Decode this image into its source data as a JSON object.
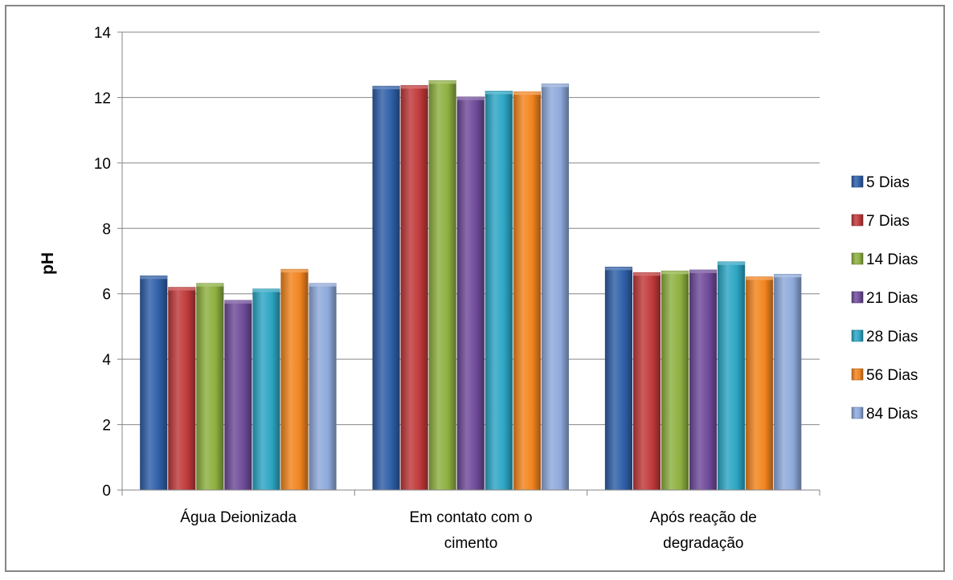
{
  "chart_data": {
    "type": "bar",
    "title": "",
    "xlabel": "",
    "ylabel": "pH",
    "ylim": [
      0,
      14
    ],
    "yticks": [
      0,
      2,
      4,
      6,
      8,
      10,
      12,
      14
    ],
    "grid": true,
    "legend_position": "right",
    "categories": [
      [
        "Água Deionizada"
      ],
      [
        "Em contato com o",
        "cimento"
      ],
      [
        "Após reação de",
        "degradação"
      ]
    ],
    "series": [
      {
        "name": "5 Dias",
        "color": "#2E5FA8",
        "values": [
          6.55,
          12.35,
          6.82
        ]
      },
      {
        "name": "7 Dias",
        "color": "#C0393A",
        "values": [
          6.2,
          12.37,
          6.65
        ]
      },
      {
        "name": "14 Dias",
        "color": "#8DB040",
        "values": [
          6.32,
          12.52,
          6.7
        ]
      },
      {
        "name": "21 Dias",
        "color": "#6F4B9A",
        "values": [
          5.8,
          12.02,
          6.73
        ]
      },
      {
        "name": "28 Dias",
        "color": "#2CA6C4",
        "values": [
          6.15,
          12.2,
          6.98
        ]
      },
      {
        "name": "56 Dias",
        "color": "#F2841F",
        "values": [
          6.75,
          12.18,
          6.52
        ]
      },
      {
        "name": "84 Dias",
        "color": "#8EA9DB",
        "values": [
          6.32,
          12.42,
          6.6
        ]
      }
    ]
  }
}
